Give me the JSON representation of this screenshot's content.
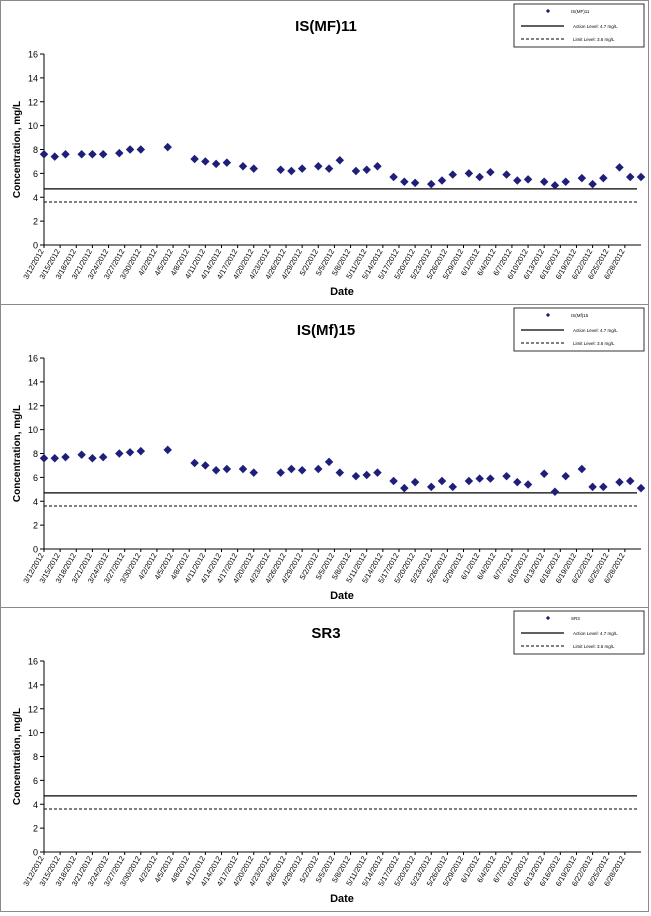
{
  "chart_data": [
    {
      "type": "scatter",
      "title": "IS(MF)11",
      "xlabel": "Date",
      "ylabel": "Concentration, mg/L",
      "ylim": [
        0,
        16
      ],
      "yticks": [
        0,
        2,
        4,
        6,
        8,
        10,
        12,
        14,
        16
      ],
      "grid": false,
      "legend_position": "top-right",
      "xticklabels": [
        "3/12/2012",
        "3/15/2012",
        "3/18/2012",
        "3/21/2012",
        "3/24/2012",
        "3/27/2012",
        "3/30/2012",
        "4/2/2012",
        "4/5/2012",
        "4/8/2012",
        "4/11/2012",
        "4/14/2012",
        "4/17/2012",
        "4/20/2012",
        "4/23/2012",
        "4/26/2012",
        "4/29/2012",
        "5/2/2012",
        "5/5/2012",
        "5/8/2012",
        "5/11/2012",
        "5/14/2012",
        "5/17/2012",
        "5/20/2012",
        "5/23/2012",
        "5/26/2012",
        "5/29/2012",
        "6/1/2012",
        "6/4/2012",
        "6/7/2012",
        "6/10/2012",
        "6/13/2012",
        "6/16/2012",
        "6/19/2012",
        "6/22/2012",
        "6/25/2012",
        "6/28/2012"
      ],
      "series": [
        {
          "name": "IS(MF)11",
          "color": "#1f1f7a",
          "x": [
            "3/12/2012",
            "3/14/2012",
            "3/16/2012",
            "3/19/2012",
            "3/21/2012",
            "3/23/2012",
            "3/26/2012",
            "3/28/2012",
            "3/30/2012",
            "4/4/2012",
            "4/9/2012",
            "4/11/2012",
            "4/13/2012",
            "4/15/2012",
            "4/18/2012",
            "4/20/2012",
            "4/25/2012",
            "4/27/2012",
            "4/29/2012",
            "5/2/2012",
            "5/4/2012",
            "5/6/2012",
            "5/9/2012",
            "5/11/2012",
            "5/13/2012",
            "5/16/2012",
            "5/18/2012",
            "5/20/2012",
            "5/23/2012",
            "5/25/2012",
            "5/27/2012",
            "5/30/2012",
            "6/1/2012",
            "6/3/2012",
            "6/6/2012",
            "6/8/2012",
            "6/10/2012",
            "6/13/2012",
            "6/15/2012",
            "6/17/2012",
            "6/20/2012",
            "6/22/2012",
            "6/24/2012",
            "6/27/2012",
            "6/29/2012",
            "7/1/2012"
          ],
          "y": [
            7.6,
            7.4,
            7.6,
            7.6,
            7.6,
            7.6,
            7.7,
            8.0,
            8.0,
            8.2,
            7.2,
            7.0,
            6.8,
            6.9,
            6.6,
            6.4,
            6.3,
            6.2,
            6.4,
            6.6,
            6.4,
            7.1,
            6.2,
            6.3,
            6.6,
            5.7,
            5.3,
            5.2,
            5.1,
            5.4,
            5.9,
            6.0,
            5.7,
            6.1,
            5.9,
            5.4,
            5.5,
            5.3,
            5.0,
            5.3,
            5.6,
            5.1,
            5.6,
            6.5,
            5.7,
            5.7
          ]
        }
      ],
      "reference_lines": [
        {
          "name": "Action Level: 4.7 mg/L",
          "value": 4.7,
          "style": "solid"
        },
        {
          "name": "Limit Level: 3.6 mg/L",
          "value": 3.6,
          "style": "dashed"
        }
      ]
    },
    {
      "type": "scatter",
      "title": "IS(Mf)15",
      "xlabel": "Date",
      "ylabel": "Concentration, mg/L",
      "ylim": [
        0,
        16
      ],
      "yticks": [
        0,
        2,
        4,
        6,
        8,
        10,
        12,
        14,
        16
      ],
      "grid": false,
      "legend_position": "top-right",
      "xticklabels": [
        "3/12/2012",
        "3/15/2012",
        "3/18/2012",
        "3/21/2012",
        "3/24/2012",
        "3/27/2012",
        "3/30/2012",
        "4/2/2012",
        "4/5/2012",
        "4/8/2012",
        "4/11/2012",
        "4/14/2012",
        "4/17/2012",
        "4/20/2012",
        "4/23/2012",
        "4/26/2012",
        "4/29/2012",
        "5/2/2012",
        "5/5/2012",
        "5/8/2012",
        "5/11/2012",
        "5/14/2012",
        "5/17/2012",
        "5/20/2012",
        "5/23/2012",
        "5/26/2012",
        "5/29/2012",
        "6/1/2012",
        "6/4/2012",
        "6/7/2012",
        "6/10/2012",
        "6/13/2012",
        "6/16/2012",
        "6/19/2012",
        "6/22/2012",
        "6/25/2012",
        "6/28/2012"
      ],
      "series": [
        {
          "name": "IS(Mf)15",
          "color": "#1f1f7a",
          "x": [
            "3/12/2012",
            "3/14/2012",
            "3/16/2012",
            "3/19/2012",
            "3/21/2012",
            "3/23/2012",
            "3/26/2012",
            "3/28/2012",
            "3/30/2012",
            "4/4/2012",
            "4/9/2012",
            "4/11/2012",
            "4/13/2012",
            "4/15/2012",
            "4/18/2012",
            "4/20/2012",
            "4/25/2012",
            "4/27/2012",
            "4/29/2012",
            "5/2/2012",
            "5/4/2012",
            "5/6/2012",
            "5/9/2012",
            "5/11/2012",
            "5/13/2012",
            "5/16/2012",
            "5/18/2012",
            "5/20/2012",
            "5/23/2012",
            "5/25/2012",
            "5/27/2012",
            "5/30/2012",
            "6/1/2012",
            "6/3/2012",
            "6/6/2012",
            "6/8/2012",
            "6/10/2012",
            "6/13/2012",
            "6/15/2012",
            "6/17/2012",
            "6/20/2012",
            "6/22/2012",
            "6/24/2012",
            "6/27/2012",
            "6/29/2012",
            "7/1/2012"
          ],
          "y": [
            7.6,
            7.6,
            7.7,
            7.9,
            7.6,
            7.7,
            8.0,
            8.1,
            8.2,
            8.3,
            7.2,
            7.0,
            6.6,
            6.7,
            6.7,
            6.4,
            6.4,
            6.7,
            6.6,
            6.7,
            7.3,
            6.4,
            6.1,
            6.2,
            6.4,
            5.7,
            5.1,
            5.6,
            5.2,
            5.7,
            5.2,
            5.7,
            5.9,
            5.9,
            6.1,
            5.6,
            5.4,
            6.3,
            4.8,
            6.1,
            6.7,
            5.2,
            5.2,
            5.6,
            5.7,
            5.1
          ]
        }
      ],
      "reference_lines": [
        {
          "name": "Action Level: 4.7 mg/L",
          "value": 4.7,
          "style": "solid"
        },
        {
          "name": "Limit Level: 3.6 mg/L",
          "value": 3.6,
          "style": "dashed"
        }
      ]
    },
    {
      "type": "scatter",
      "title": "SR3",
      "xlabel": "Date",
      "ylabel": "Concentration, mg/L",
      "ylim": [
        0,
        16
      ],
      "yticks": [
        0,
        2,
        4,
        6,
        8,
        10,
        12,
        14,
        16
      ],
      "grid": false,
      "legend_position": "top-right",
      "xticklabels": [
        "3/12/2012",
        "3/15/2012",
        "3/18/2012",
        "3/21/2012",
        "3/24/2012",
        "3/27/2012",
        "3/30/2012",
        "4/2/2012",
        "4/5/2012",
        "4/8/2012",
        "4/11/2012",
        "4/14/2012",
        "4/17/2012",
        "4/20/2012",
        "4/23/2012",
        "4/26/2012",
        "4/29/2012",
        "5/2/2012",
        "5/5/2012",
        "5/8/2012",
        "5/11/2012",
        "5/14/2012",
        "5/17/2012",
        "5/20/2012",
        "5/23/2012",
        "5/26/2012",
        "5/29/2012",
        "6/1/2012",
        "6/4/2012",
        "6/7/2012",
        "6/10/2012",
        "6/13/2012",
        "6/16/2012",
        "6/19/2012",
        "6/22/2012",
        "6/25/2012",
        "6/28/2012"
      ],
      "series": [
        {
          "name": "SR3",
          "color": "#1f1f7a",
          "x": [],
          "y": []
        }
      ],
      "reference_lines": [
        {
          "name": "Action Level: 4.7 mg/L",
          "value": 4.7,
          "style": "solid"
        },
        {
          "name": "Limit Level: 3.6 mg/L",
          "value": 3.6,
          "style": "dashed"
        }
      ]
    }
  ]
}
